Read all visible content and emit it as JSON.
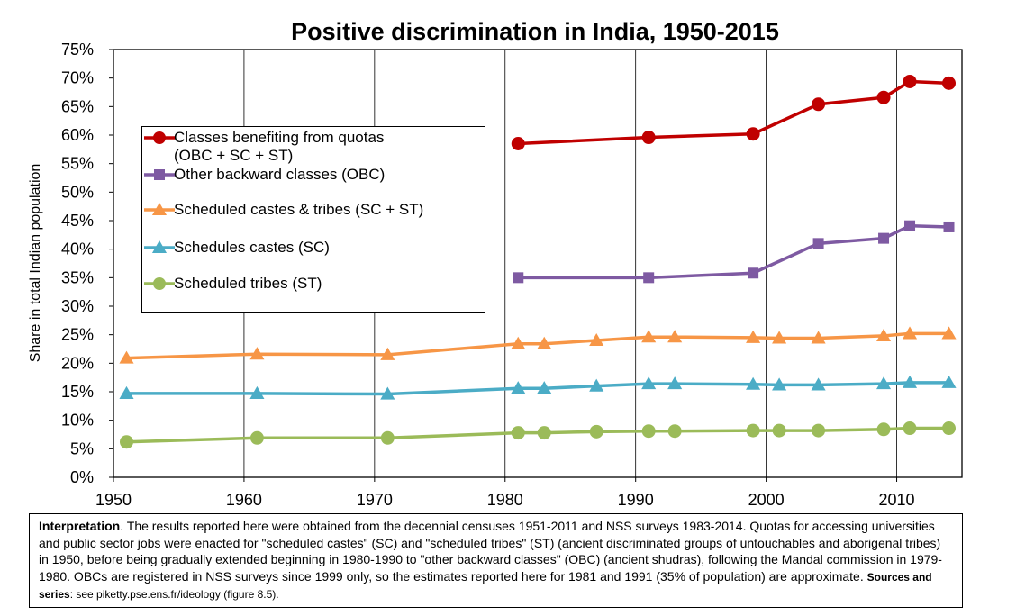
{
  "chart_data": {
    "type": "line",
    "title": "Positive discrimination in India, 1950-2015",
    "xlabel": "",
    "ylabel": "Share in total Indian population",
    "xlim": [
      1950,
      2015
    ],
    "ylim": [
      0,
      0.75
    ],
    "x_ticks": [
      "1950",
      "1960",
      "1970",
      "1980",
      "1990",
      "2000",
      "2010"
    ],
    "y_ticks": [
      "0%",
      "5%",
      "10%",
      "15%",
      "20%",
      "25%",
      "30%",
      "35%",
      "40%",
      "45%",
      "50%",
      "55%",
      "60%",
      "65%",
      "70%",
      "75%"
    ],
    "grid": "vertical",
    "legend": "upper-left",
    "series": [
      {
        "name": "Classes benefiting from quotas\n(OBC + SC + ST)",
        "color": "#c00000",
        "marker": "circle",
        "x": [
          1981,
          1991,
          1999,
          2004,
          2009,
          2011,
          2014
        ],
        "y": [
          0.585,
          0.596,
          0.602,
          0.654,
          0.666,
          0.694,
          0.691
        ]
      },
      {
        "name": "Other backward classes (OBC)",
        "color": "#7e5aa2",
        "marker": "square",
        "x": [
          1981,
          1991,
          1999,
          2004,
          2009,
          2011,
          2014
        ],
        "y": [
          0.35,
          0.35,
          0.358,
          0.41,
          0.419,
          0.441,
          0.439
        ]
      },
      {
        "name": "Scheduled castes & tribes (SC + ST)",
        "color": "#f79646",
        "marker": "triangle",
        "x": [
          1951,
          1961,
          1971,
          1981,
          1983,
          1987,
          1991,
          1993,
          1999,
          2001,
          2004,
          2009,
          2011,
          2014
        ],
        "y": [
          0.209,
          0.216,
          0.215,
          0.234,
          0.234,
          0.24,
          0.246,
          0.246,
          0.245,
          0.244,
          0.244,
          0.248,
          0.252,
          0.252
        ]
      },
      {
        "name": "Schedules castes (SC)",
        "color": "#4bacc6",
        "marker": "triangle",
        "x": [
          1951,
          1961,
          1971,
          1981,
          1983,
          1987,
          1991,
          1993,
          1999,
          2001,
          2004,
          2009,
          2011,
          2014
        ],
        "y": [
          0.147,
          0.147,
          0.146,
          0.156,
          0.156,
          0.16,
          0.164,
          0.164,
          0.163,
          0.162,
          0.162,
          0.164,
          0.166,
          0.166
        ]
      },
      {
        "name": "Scheduled tribes (ST)",
        "color": "#9bbb59",
        "marker": "circle",
        "x": [
          1951,
          1961,
          1971,
          1981,
          1983,
          1987,
          1991,
          1993,
          1999,
          2001,
          2004,
          2009,
          2011,
          2014
        ],
        "y": [
          0.062,
          0.069,
          0.069,
          0.078,
          0.078,
          0.08,
          0.081,
          0.081,
          0.082,
          0.082,
          0.082,
          0.084,
          0.086,
          0.086
        ]
      }
    ]
  },
  "note": {
    "label": "Interpretation",
    "text": ". The results reported here were obtained from the decennial censuses 1951-2011 and NSS surveys 1983-2014. Quotas for accessing universities and public sector jobs were enacted for \"scheduled castes\" (SC) and \"scheduled tribes\" (ST) (ancient discriminated groups of untouchables and aborigenal tribes) in 1950, before being gradually extended beginning in 1980-1990 to \"other backward classes\" (OBC) (ancient shudras), following the Mandal commission in 1979-1980. OBCs are registered in NSS surveys since 1999 only, so the estimates reported here for 1981 and 1991 (35% of population) are approximate. ",
    "sources_label": "Sources and series",
    "sources_text": ": see piketty.pse.ens.fr/ideology (figure 8.5)."
  }
}
